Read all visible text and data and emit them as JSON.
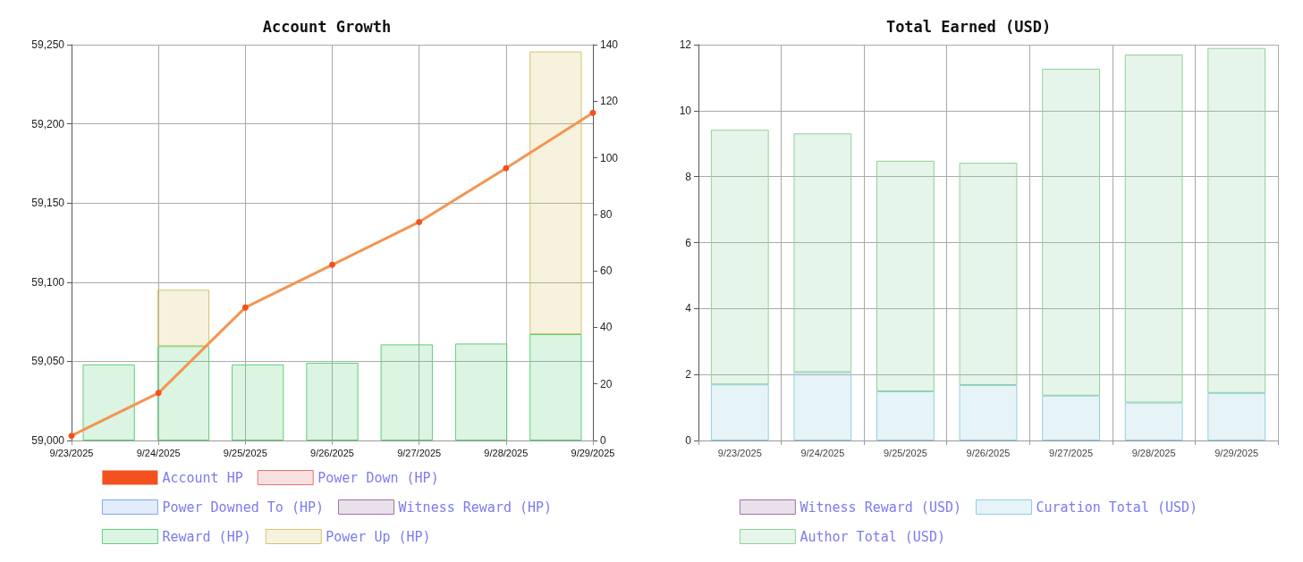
{
  "chart_data": [
    {
      "type": "bar",
      "title": "Account Growth",
      "categories": [
        "9/23/2025",
        "9/24/2025",
        "9/25/2025",
        "9/26/2025",
        "9/27/2025",
        "9/28/2025",
        "9/29/2025"
      ],
      "ylim": [
        59000,
        59250
      ],
      "yticks": [
        {
          "value": 59000,
          "label": "59,000"
        },
        {
          "value": 59050,
          "label": "59,050"
        },
        {
          "value": 59100,
          "label": "59,100"
        },
        {
          "value": 59150,
          "label": "59,150"
        },
        {
          "value": 59200,
          "label": "59,200"
        },
        {
          "value": 59250,
          "label": "59,250"
        }
      ],
      "y2lim": [
        0,
        140
      ],
      "y2ticks": [
        0,
        20,
        40,
        60,
        80,
        100,
        120,
        140
      ],
      "stacked": true,
      "grid": true,
      "legend": "bottom",
      "marker": "circle",
      "series": [
        {
          "name": "Account HP",
          "type": "line",
          "color": "#f39552",
          "values": [
            59003,
            59030,
            59084,
            59111,
            59138,
            59172,
            59207
          ]
        },
        {
          "name": "Power Down (HP)",
          "axis": "y2",
          "color": "#e57373",
          "values": [
            null,
            null,
            null,
            null,
            null,
            null,
            null
          ]
        },
        {
          "name": "Power Downed To (HP)",
          "axis": "y2",
          "color": "#7aa7f0",
          "values": [
            null,
            null,
            null,
            null,
            null,
            null,
            null
          ]
        },
        {
          "name": "Witness Reward (HP)",
          "axis": "y2",
          "color": "#a070a8",
          "values": [
            null,
            null,
            null,
            null,
            null,
            null,
            null
          ]
        },
        {
          "name": "Reward (HP)",
          "axis": "y2",
          "color": "#5fcf7a",
          "values": [
            26.9,
            33.4,
            26.9,
            27.5,
            34.0,
            34.3,
            37.6
          ]
        },
        {
          "name": "Power Up (HP)",
          "axis": "y2",
          "color": "#d4c46a",
          "values": [
            null,
            19.9,
            null,
            null,
            null,
            null,
            100
          ]
        }
      ]
    },
    {
      "type": "bar",
      "title": "Total Earned (USD)",
      "categories": [
        "9/23/2025",
        "9/24/2025",
        "9/25/2025",
        "9/26/2025",
        "9/27/2025",
        "9/28/2025",
        "9/29/2025"
      ],
      "ylim": [
        0,
        12
      ],
      "yticks": [
        0,
        2,
        4,
        6,
        8,
        10,
        12
      ],
      "stacked": true,
      "grid": true,
      "legend": "bottom",
      "series": [
        {
          "name": "Witness Reward (USD)",
          "color": "#a070a8",
          "values": [
            null,
            null,
            null,
            null,
            null,
            null,
            null
          ]
        },
        {
          "name": "Curation Total (USD)",
          "color": "#8fcfe0",
          "values": [
            1.7,
            2.07,
            1.49,
            1.68,
            1.36,
            1.15,
            1.44
          ]
        },
        {
          "name": "Author Total (USD)",
          "color": "#8fd19a",
          "values": [
            7.72,
            7.24,
            6.99,
            6.74,
            9.91,
            10.55,
            10.46
          ]
        }
      ]
    }
  ]
}
